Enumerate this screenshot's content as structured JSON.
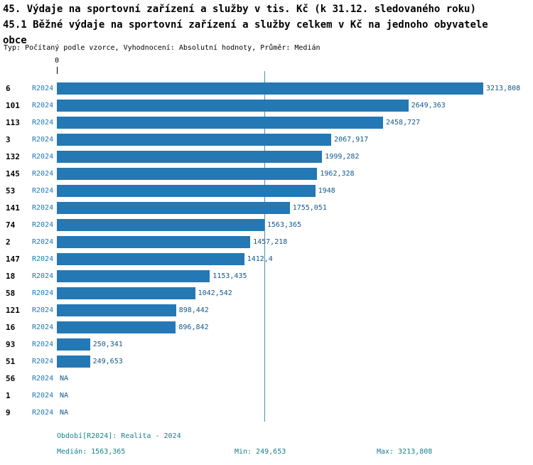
{
  "title": {
    "line1": "45. Výdaje na sportovní zařízení a služby v tis. Kč (k 31.12. sledovaného roku)",
    "line2": "45.1 Běžné výdaje na sportovní zařízení a služby celkem v Kč na jednoho obyvatele",
    "line3": "obce"
  },
  "subtitle": "Typ: Počítaný podle vzorce, Vyhodnocení: Absolutní hodnoty, Průměr: Medián",
  "footer": {
    "period": "Období[R2024]: Realita - 2024",
    "median": "Medián: 1563,365",
    "min": "Min: 249,653",
    "max": "Max: 3213,808"
  },
  "colors": {
    "bar": "#2478b4",
    "series_label": "#1f77b4",
    "value_label": "#13578a",
    "median_line": "#4393b9",
    "footer_text": "#16808c"
  },
  "chart_data": {
    "type": "bar",
    "orientation": "horizontal",
    "series_label": "R2024",
    "x_axis": {
      "zero_label": "0",
      "xmin": 0,
      "xmax": 3213.808,
      "grid": false
    },
    "median_value": 1563.365,
    "min_value": 249.653,
    "max_value": 3213.808,
    "na_text": "NA",
    "rows": [
      {
        "id": "6",
        "value": 3213.808,
        "display": "3213,808"
      },
      {
        "id": "101",
        "value": 2649.363,
        "display": "2649,363"
      },
      {
        "id": "113",
        "value": 2458.727,
        "display": "2458,727"
      },
      {
        "id": "3",
        "value": 2067.917,
        "display": "2067,917"
      },
      {
        "id": "132",
        "value": 1999.282,
        "display": "1999,282"
      },
      {
        "id": "145",
        "value": 1962.328,
        "display": "1962,328"
      },
      {
        "id": "53",
        "value": 1948,
        "display": "1948"
      },
      {
        "id": "141",
        "value": 1755.051,
        "display": "1755,051"
      },
      {
        "id": "74",
        "value": 1563.365,
        "display": "1563,365"
      },
      {
        "id": "2",
        "value": 1457.218,
        "display": "1457,218"
      },
      {
        "id": "147",
        "value": 1412.4,
        "display": "1412,4"
      },
      {
        "id": "18",
        "value": 1153.435,
        "display": "1153,435"
      },
      {
        "id": "58",
        "value": 1042.542,
        "display": "1042,542"
      },
      {
        "id": "121",
        "value": 898.442,
        "display": "898,442"
      },
      {
        "id": "16",
        "value": 896.842,
        "display": "896,842"
      },
      {
        "id": "93",
        "value": 250.341,
        "display": "250,341"
      },
      {
        "id": "51",
        "value": 249.653,
        "display": "249,653"
      },
      {
        "id": "56",
        "value": null,
        "display": "NA"
      },
      {
        "id": "1",
        "value": null,
        "display": "NA"
      },
      {
        "id": "9",
        "value": null,
        "display": "NA"
      }
    ]
  }
}
